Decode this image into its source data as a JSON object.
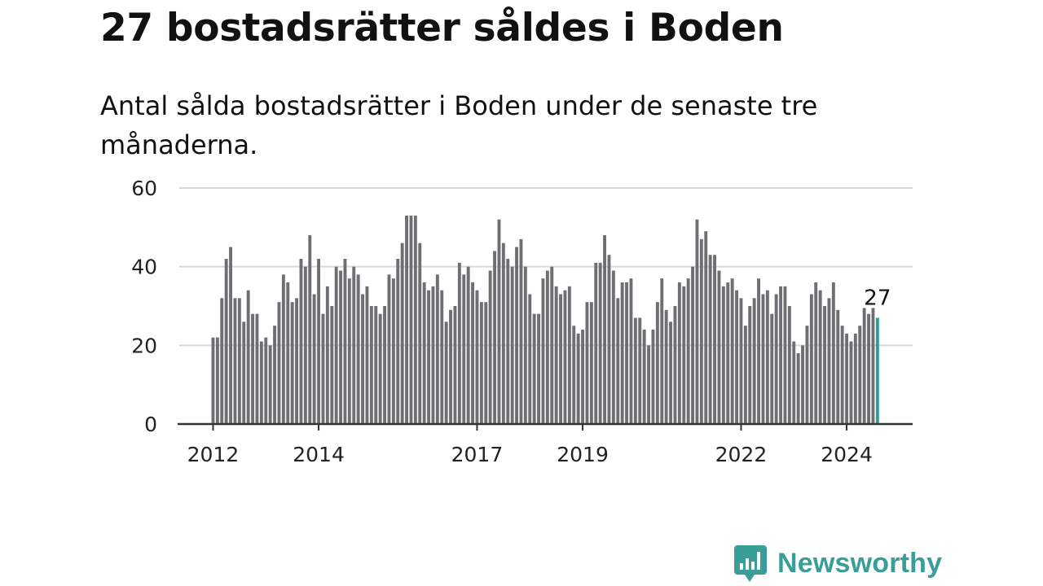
{
  "title": "27 bostadsrätter såldes i Boden",
  "subtitle": "Antal sålda bostadsrätter i Boden under de senaste tre månaderna.",
  "brand": {
    "name": "Newsworthy",
    "icon": "newsworthy-logo-icon",
    "color": "#3a9e98"
  },
  "colors": {
    "bar": "#6f6e73",
    "highlight": "#2a9d96",
    "grid": "#d9d9d9",
    "axis": "#333333"
  },
  "chart_data": {
    "type": "bar",
    "title": "27 bostadsrätter såldes i Boden",
    "subtitle": "Antal sålda bostadsrätter i Boden under de senaste tre månaderna.",
    "xlabel": "",
    "ylabel": "",
    "ylim": [
      0,
      60
    ],
    "yticks": [
      0,
      20,
      40,
      60
    ],
    "grid": true,
    "period": "monthly, rolling three-month count, Jan 2012 – Jul 2024",
    "start": {
      "year": 2012,
      "month": 1
    },
    "xticks": [
      {
        "label": "2012",
        "year": 2012
      },
      {
        "label": "2014",
        "year": 2014
      },
      {
        "label": "2017",
        "year": 2017
      },
      {
        "label": "2019",
        "year": 2019
      },
      {
        "label": "2022",
        "year": 2022
      },
      {
        "label": "2024",
        "year": 2024
      }
    ],
    "values": [
      22,
      22,
      32,
      42,
      45,
      32,
      32,
      26,
      34,
      28,
      28,
      21,
      22,
      20,
      25,
      31,
      38,
      36,
      31,
      32,
      42,
      40,
      48,
      33,
      42,
      28,
      35,
      30,
      40,
      39,
      42,
      37,
      40,
      38,
      33,
      35,
      30,
      30,
      28,
      30,
      38,
      37,
      42,
      46,
      53,
      53,
      53,
      46,
      36,
      34,
      35,
      38,
      34,
      26,
      29,
      30,
      41,
      38,
      40,
      36,
      34,
      31,
      31,
      39,
      44,
      52,
      46,
      42,
      40,
      45,
      47,
      40,
      33,
      28,
      28,
      37,
      39,
      40,
      35,
      33,
      34,
      35,
      25,
      23,
      24,
      31,
      31,
      41,
      41,
      48,
      43,
      39,
      32,
      36,
      36,
      37,
      27,
      27,
      24,
      20,
      24,
      31,
      37,
      29,
      26,
      30,
      36,
      35,
      37,
      40,
      52,
      47,
      49,
      43,
      43,
      39,
      35,
      36,
      37,
      34,
      32,
      25,
      30,
      32,
      37,
      33,
      34,
      28,
      33,
      35,
      35,
      30,
      21,
      18,
      20,
      25,
      33,
      36,
      34,
      30,
      32,
      36,
      29,
      25,
      23,
      21,
      23,
      25,
      29.5,
      28,
      29.5,
      27
    ],
    "highlight": {
      "label": "27",
      "value": 27,
      "index": "last"
    }
  }
}
